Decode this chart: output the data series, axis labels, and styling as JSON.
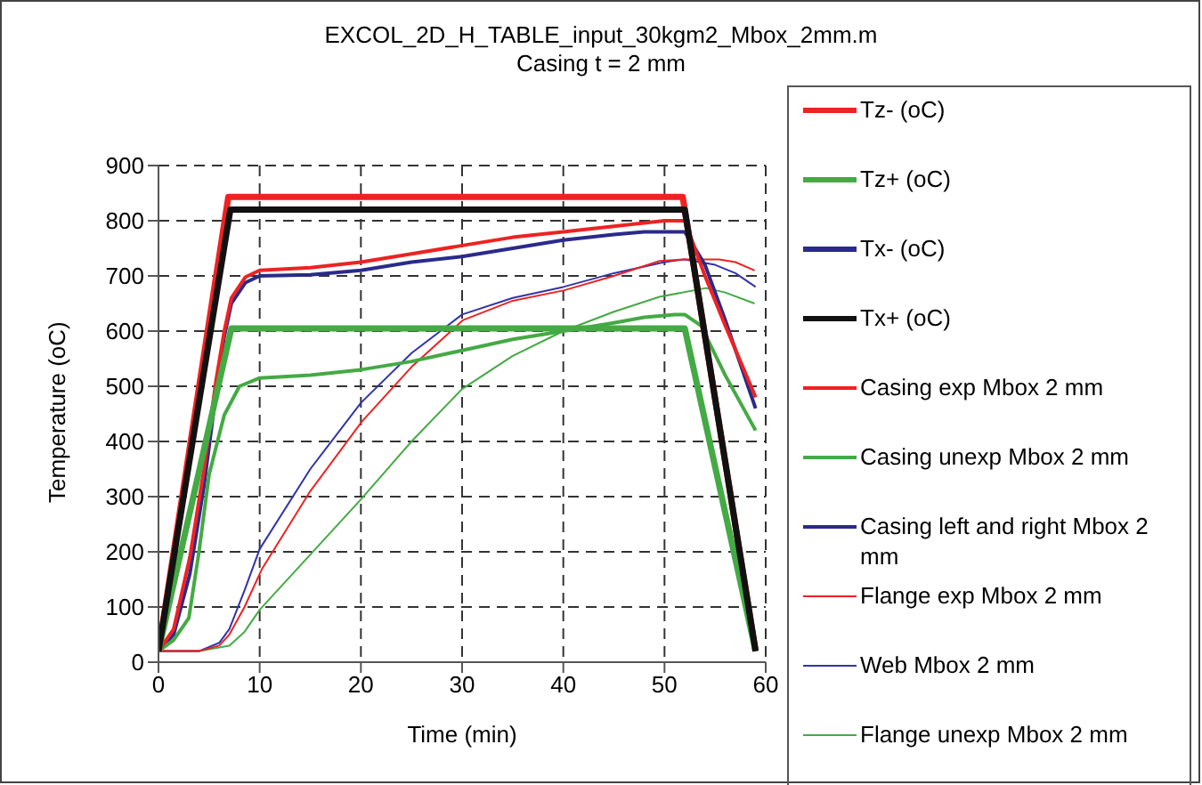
{
  "chart_data": {
    "type": "line",
    "title": "EXCOL_2D_H_TABLE_input_30kgm2_Mbox_2mm.m",
    "subtitle": "Casing t = 2 mm",
    "xlabel": "Time (min)",
    "ylabel": "Temperature (oC)",
    "xlim": [
      0,
      60
    ],
    "xticks": [
      0,
      10,
      20,
      30,
      40,
      50,
      60
    ],
    "ylim": [
      0,
      900
    ],
    "yticks": [
      0,
      100,
      200,
      300,
      400,
      500,
      600,
      700,
      800,
      900
    ],
    "grid": true,
    "legend": "right",
    "line_style": "solid",
    "marker": "none",
    "series": [
      {
        "name": "Tz- (oC)",
        "color": "#ee2222",
        "x": [
          0,
          6.9,
          51.8,
          59
        ],
        "values": [
          20,
          843,
          843,
          20
        ]
      },
      {
        "name": "Tz+ (oC)",
        "color": "#44aa44",
        "x": [
          0,
          7.2,
          52,
          59
        ],
        "values": [
          20,
          605,
          605,
          20
        ]
      },
      {
        "name": "Tx- (oC)",
        "color": "#2a2a8c",
        "values": [
          null,
          null,
          null,
          null
        ]
      },
      {
        "name": "Tx+ (oC)",
        "color": "#111111",
        "x": [
          0,
          7.1,
          52,
          59
        ],
        "values": [
          20,
          820,
          820,
          20
        ]
      },
      {
        "name": "Casing exp Mbox 2 mm",
        "color": "#ee2222",
        "x": [
          0,
          1.5,
          3.1,
          4.5,
          5.7,
          6.5,
          7.2,
          8.6,
          10,
          15,
          20,
          25,
          30,
          35,
          40,
          45,
          50,
          52,
          54,
          56,
          59
        ],
        "values": [
          20,
          60,
          190,
          350,
          512,
          600,
          660,
          698,
          710,
          715,
          725,
          740,
          755,
          770,
          780,
          790,
          800,
          800,
          700,
          610,
          480
        ]
      },
      {
        "name": "Casing unexp Mbox 2 mm",
        "color": "#44aa44",
        "x": [
          0,
          1.5,
          3,
          4,
          5,
          6.5,
          8,
          10,
          15,
          20,
          25,
          30,
          35,
          40,
          45,
          48,
          51,
          52,
          53.6,
          56,
          59
        ],
        "values": [
          20,
          40,
          80,
          200,
          340,
          448,
          500,
          515,
          520,
          530,
          545,
          565,
          585,
          600,
          615,
          625,
          630,
          630,
          610,
          520,
          420
        ]
      },
      {
        "name": "Casing left and right Mbox 2 mm",
        "color": "#2a2a8c",
        "x": [
          0,
          1.5,
          3.1,
          4.5,
          5.7,
          6.5,
          7.2,
          8.6,
          10,
          15,
          20,
          25,
          30,
          35,
          40,
          45,
          48,
          52,
          54,
          56,
          59
        ],
        "values": [
          20,
          50,
          160,
          320,
          490,
          590,
          650,
          688,
          700,
          702,
          710,
          725,
          735,
          750,
          765,
          775,
          780,
          780,
          720,
          620,
          460
        ]
      },
      {
        "name": "Flange exp Mbox 2 mm",
        "color": "#ee2222",
        "x": [
          0,
          4,
          6,
          7,
          8.5,
          10.2,
          15,
          20.1,
          25,
          30.1,
          35,
          40.1,
          45,
          49.5,
          52,
          55.4,
          57,
          58.9
        ],
        "values": [
          20,
          20,
          30,
          50,
          100,
          168,
          310,
          436,
          535,
          620,
          655,
          674,
          700,
          727,
          730,
          730,
          725,
          710
        ]
      },
      {
        "name": "Web Mbox 2 mm",
        "color": "#3333aa",
        "x": [
          0,
          4,
          6,
          7,
          8.5,
          10,
          15,
          20,
          25,
          30,
          35,
          40,
          45,
          50,
          52,
          55,
          57,
          59
        ],
        "values": [
          20,
          20,
          35,
          60,
          130,
          205,
          350,
          470,
          560,
          630,
          660,
          680,
          705,
          725,
          730,
          720,
          705,
          680
        ]
      },
      {
        "name": "Flange unexp Mbox 2 mm",
        "color": "#44aa44",
        "x": [
          0,
          4,
          7,
          8.5,
          10,
          15,
          20,
          25,
          30,
          35,
          40,
          45,
          49.5,
          54.1,
          56,
          58.9
        ],
        "values": [
          20,
          20,
          30,
          55,
          95,
          195,
          295,
          400,
          495,
          555,
          600,
          635,
          662,
          678,
          670,
          650
        ]
      }
    ]
  }
}
